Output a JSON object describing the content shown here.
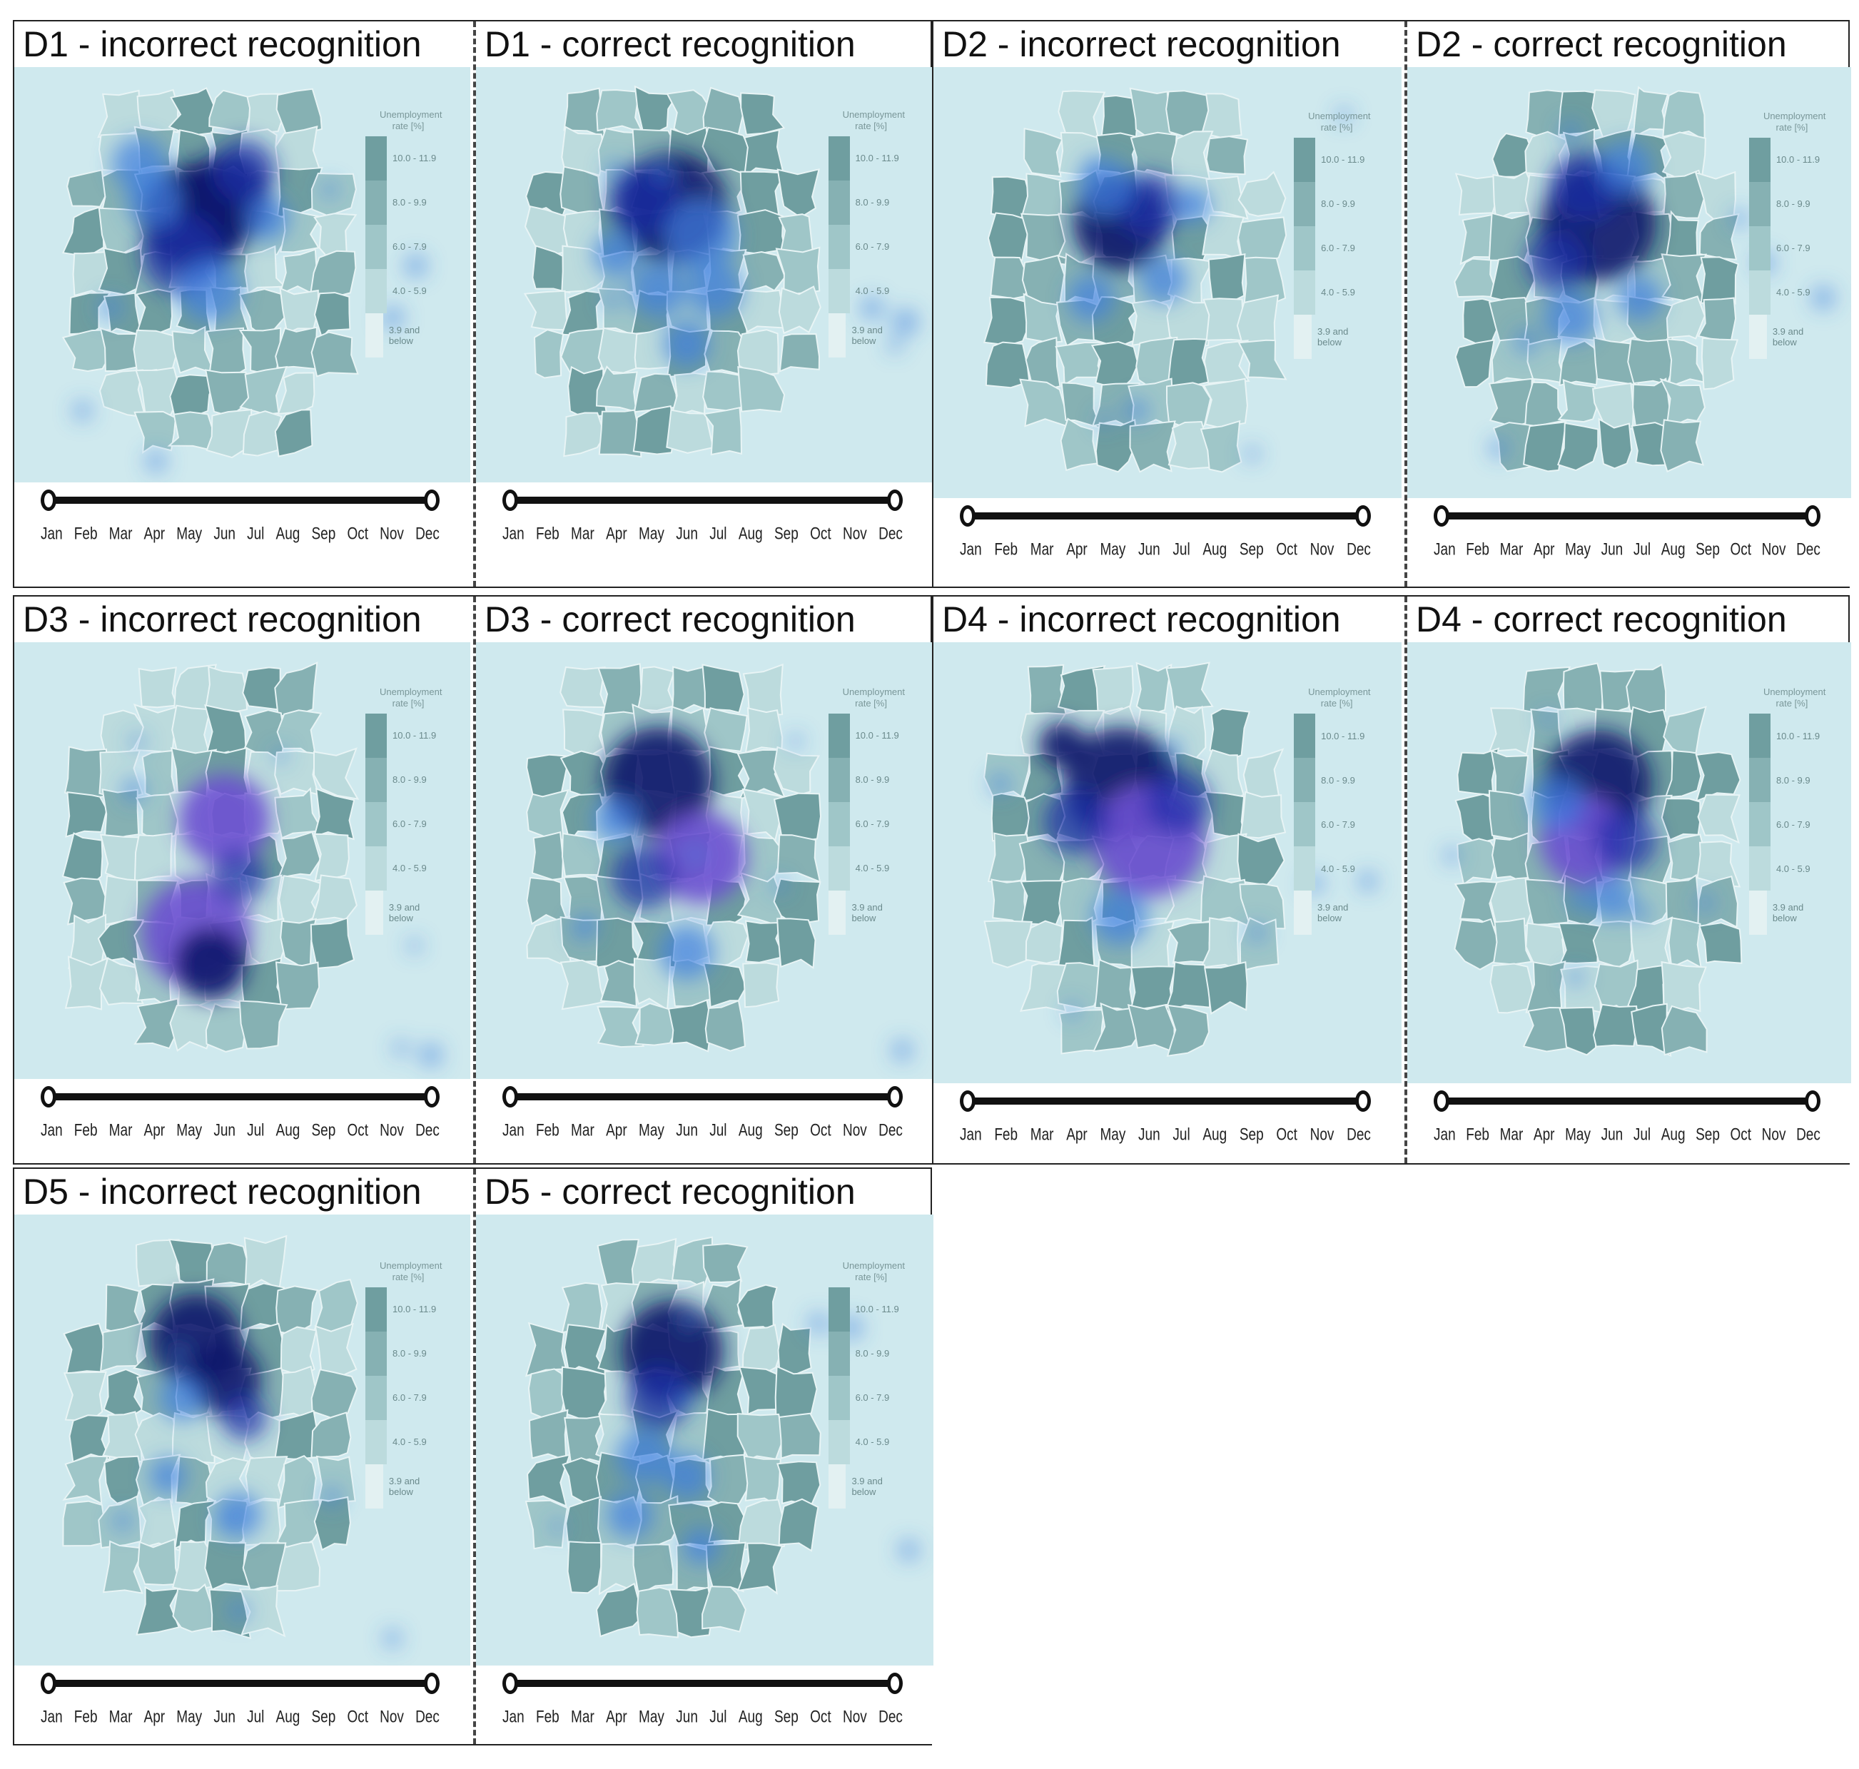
{
  "colors": {
    "background": "#cfe9ee",
    "region_shades": [
      "#e3f1f2",
      "#bcdbdd",
      "#9fc6c8",
      "#86b1b3",
      "#6f9ea0"
    ],
    "heat_shades": [
      "#9ec6f0",
      "#3f7fe0",
      "#1b2ea8",
      "#10186c",
      "#6b4fd0"
    ]
  },
  "timeline_months": [
    "Jan",
    "Feb",
    "Mar",
    "Apr",
    "May",
    "Jun",
    "Jul",
    "Aug",
    "Sep",
    "Oct",
    "Nov",
    "Dec"
  ],
  "legend": {
    "title_line1": "Unemployment",
    "title_line2": "rate [%]",
    "classes": [
      "10.0 - 11.9",
      "8.0 - 9.9",
      "6.0 - 7.9",
      "4.0 - 5.9",
      "3.9 and below"
    ]
  },
  "panels": [
    {
      "title": "D1 - incorrect recognition"
    },
    {
      "title": "D1 - correct recognition"
    },
    {
      "title": "D2 - incorrect recognition"
    },
    {
      "title": "D2 - correct recognition"
    },
    {
      "title": "D3 - incorrect recognition"
    },
    {
      "title": "D3 - correct recognition"
    },
    {
      "title": "D4 - incorrect recognition"
    },
    {
      "title": "D4 - correct recognition"
    },
    {
      "title": "D5 - incorrect recognition"
    },
    {
      "title": "D5 - correct recognition"
    }
  ]
}
